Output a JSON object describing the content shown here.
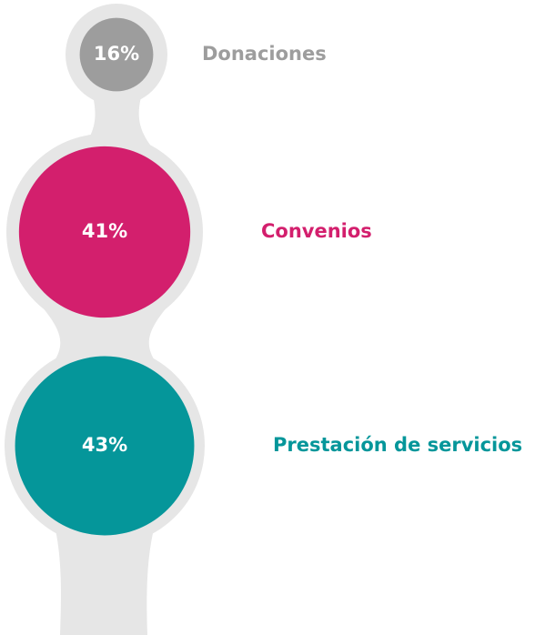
{
  "chart_data": {
    "type": "bubble",
    "categories": [
      "Donaciones",
      "Convenios",
      "Prestación de servicios"
    ],
    "values": [
      16,
      41,
      43
    ],
    "value_labels": [
      "16%",
      "41%",
      "43%"
    ],
    "colors": [
      "#9d9d9d",
      "#d31f6d",
      "#05969a"
    ]
  }
}
